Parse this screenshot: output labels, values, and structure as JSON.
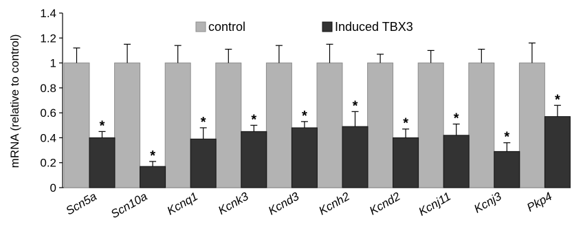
{
  "chart_data": {
    "type": "bar",
    "ylabel": "mRNA (relative to control)",
    "ylim": [
      0,
      1.4
    ],
    "yticks": [
      "0",
      "0.2",
      "0.4",
      "0.6",
      "0.8",
      "1",
      "1.2",
      "1.4"
    ],
    "categories": [
      "Scn5a",
      "Scn10a",
      "Kcnq1",
      "Kcnk3",
      "Kcnd3",
      "Kcnh2",
      "Kcnd2",
      "Kcnj11",
      "Kcnj3",
      "Pkp4"
    ],
    "series": [
      {
        "name": "control",
        "color": "#b3b3b3",
        "values": [
          1,
          1,
          1,
          1,
          1,
          1,
          1,
          1,
          1,
          1
        ],
        "errors": [
          0.12,
          0.15,
          0.14,
          0.11,
          0.14,
          0.15,
          0.07,
          0.1,
          0.11,
          0.16
        ]
      },
      {
        "name": "Induced TBX3",
        "color": "#333333",
        "values": [
          0.4,
          0.17,
          0.39,
          0.45,
          0.48,
          0.49,
          0.4,
          0.42,
          0.29,
          0.57
        ],
        "errors": [
          0.05,
          0.04,
          0.09,
          0.05,
          0.05,
          0.12,
          0.07,
          0.09,
          0.07,
          0.09
        ]
      }
    ],
    "significance_marker": "*",
    "significant": [
      true,
      true,
      true,
      true,
      true,
      true,
      true,
      true,
      true,
      true
    ],
    "legend_position": "top",
    "grid": false
  }
}
